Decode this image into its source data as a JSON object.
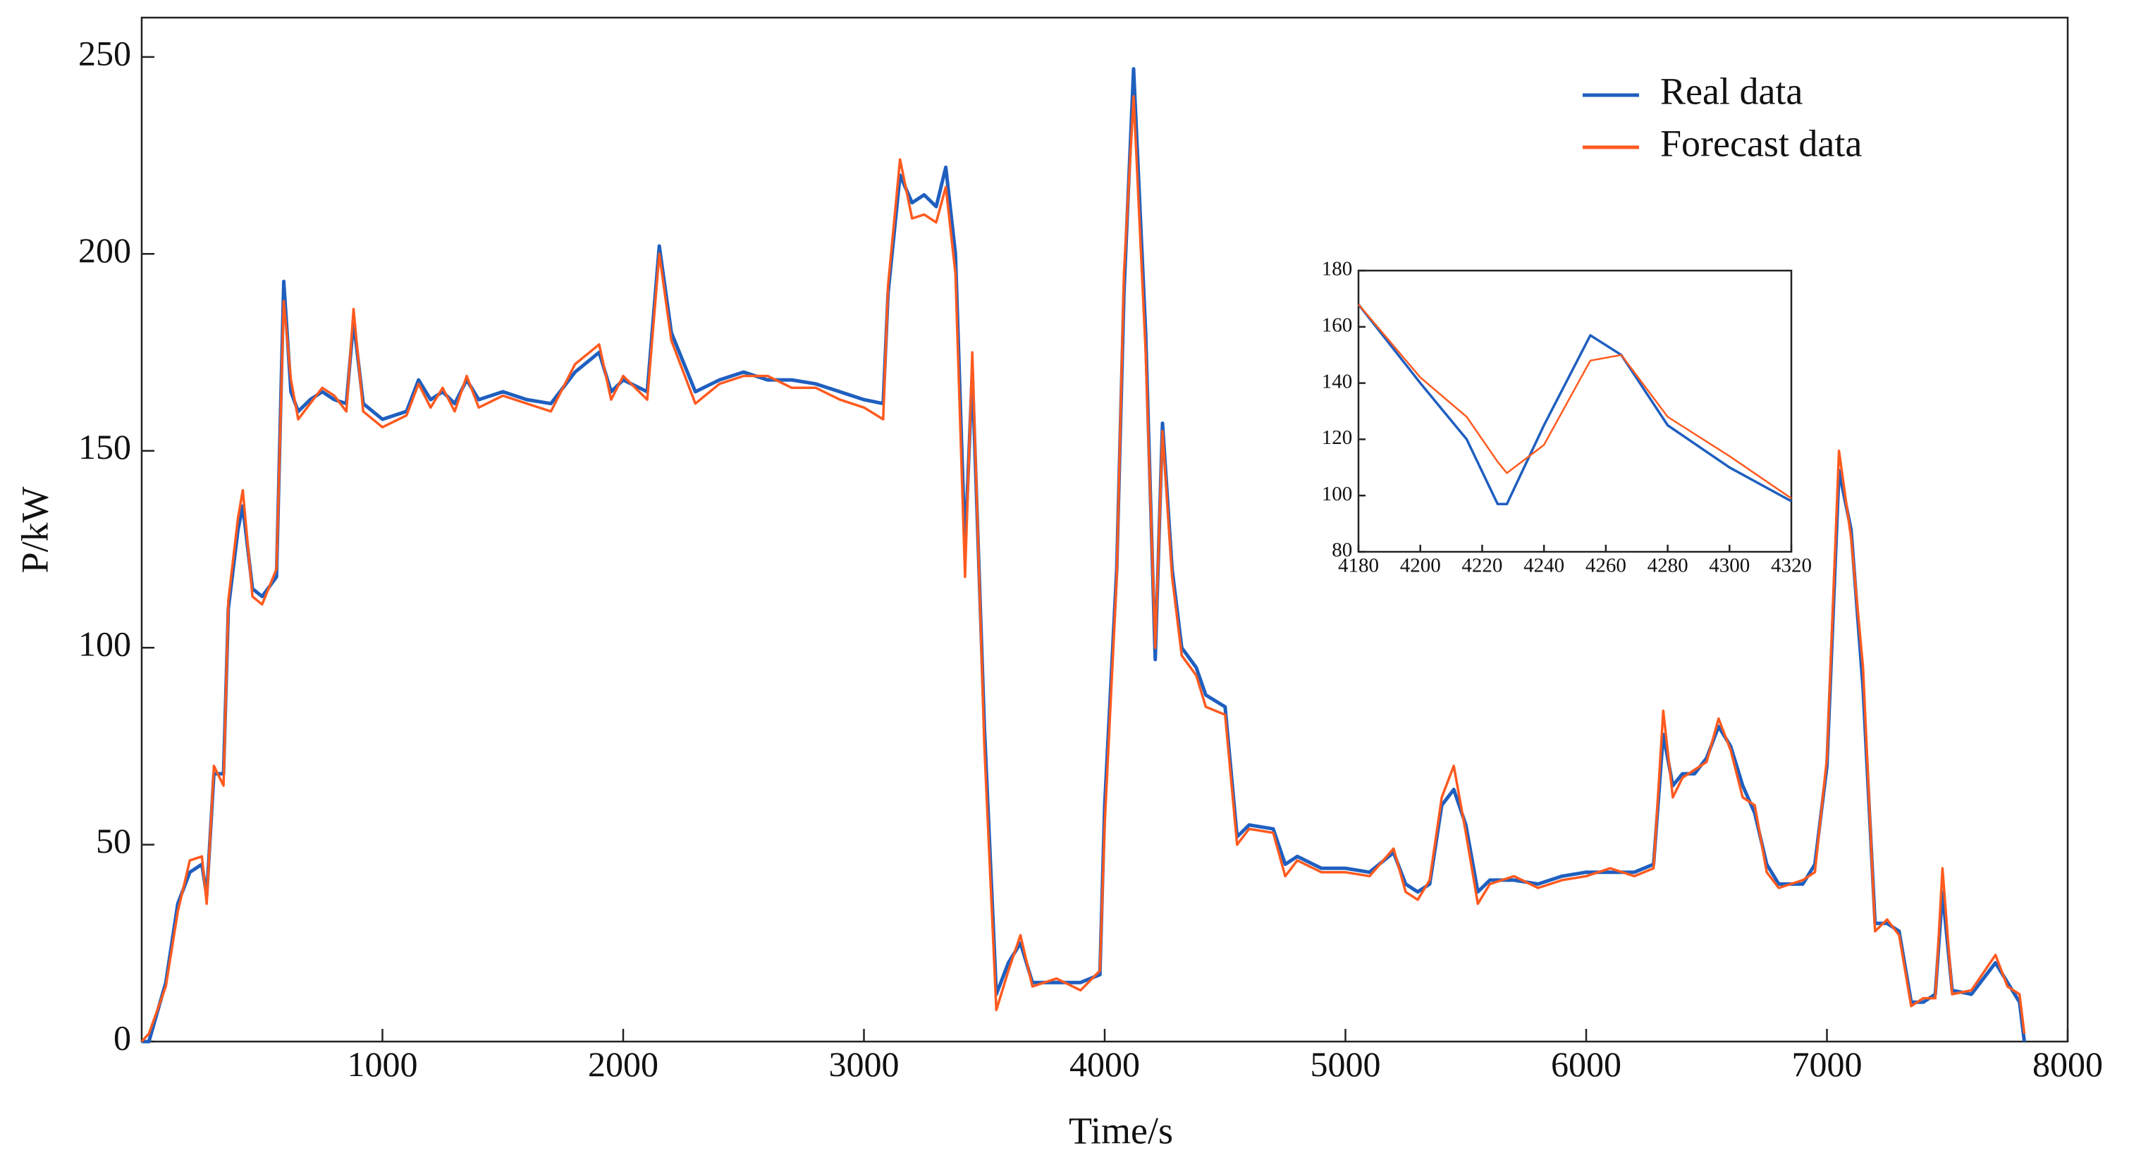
{
  "chart_data": [
    {
      "type": "line",
      "x_label": "Time/s",
      "y_label": "P/kW",
      "xlim": [
        0,
        8000
      ],
      "ylim": [
        0,
        260
      ],
      "xticks": [
        1000,
        2000,
        3000,
        4000,
        5000,
        6000,
        7000,
        8000
      ],
      "yticks": [
        0,
        50,
        100,
        150,
        200,
        250
      ],
      "legend": "upper right",
      "x": [
        0,
        30,
        100,
        150,
        200,
        250,
        270,
        300,
        340,
        360,
        400,
        420,
        460,
        500,
        560,
        590,
        620,
        650,
        700,
        750,
        800,
        850,
        880,
        920,
        1000,
        1100,
        1150,
        1200,
        1250,
        1300,
        1350,
        1400,
        1500,
        1600,
        1700,
        1800,
        1900,
        1950,
        2000,
        2100,
        2150,
        2200,
        2300,
        2400,
        2500,
        2600,
        2700,
        2800,
        2900,
        3000,
        3080,
        3100,
        3150,
        3200,
        3250,
        3300,
        3340,
        3380,
        3420,
        3450,
        3500,
        3550,
        3600,
        3650,
        3700,
        3800,
        3900,
        3980,
        4000,
        4050,
        4080,
        4120,
        4170,
        4210,
        4240,
        4280,
        4320,
        4380,
        4420,
        4500,
        4550,
        4600,
        4700,
        4750,
        4800,
        4900,
        5000,
        5100,
        5200,
        5250,
        5300,
        5350,
        5400,
        5450,
        5500,
        5550,
        5600,
        5700,
        5800,
        5900,
        6000,
        6100,
        6200,
        6280,
        6320,
        6360,
        6400,
        6450,
        6500,
        6550,
        6600,
        6650,
        6700,
        6750,
        6800,
        6900,
        6950,
        7000,
        7050,
        7100,
        7150,
        7200,
        7250,
        7300,
        7350,
        7400,
        7450,
        7480,
        7520,
        7600,
        7700,
        7750,
        7800,
        7820
      ],
      "series": [
        {
          "name": "Real data",
          "color": "#1f5fbf",
          "values": [
            0,
            0,
            15,
            35,
            43,
            45,
            37,
            68,
            68,
            110,
            130,
            136,
            115,
            113,
            118,
            193,
            165,
            160,
            163,
            165,
            163,
            162,
            183,
            162,
            158,
            160,
            168,
            163,
            165,
            162,
            168,
            163,
            165,
            163,
            162,
            170,
            175,
            165,
            168,
            165,
            202,
            180,
            165,
            168,
            170,
            168,
            168,
            167,
            165,
            163,
            162,
            190,
            220,
            213,
            215,
            212,
            222,
            200,
            125,
            170,
            80,
            12,
            20,
            25,
            15,
            15,
            15,
            17,
            60,
            120,
            190,
            247,
            180,
            97,
            157,
            120,
            100,
            95,
            88,
            85,
            52,
            55,
            54,
            45,
            47,
            44,
            44,
            43,
            48,
            40,
            38,
            40,
            60,
            64,
            55,
            38,
            41,
            41,
            40,
            42,
            43,
            43,
            43,
            45,
            78,
            65,
            68,
            68,
            72,
            80,
            75,
            65,
            58,
            45,
            40,
            40,
            45,
            70,
            145,
            130,
            90,
            30,
            30,
            28,
            10,
            10,
            12,
            38,
            13,
            12,
            20,
            15,
            10,
            0
          ]
        },
        {
          "name": "Forecast data",
          "color": "#ff5a1f",
          "values": [
            0,
            2,
            14,
            33,
            46,
            47,
            35,
            70,
            65,
            112,
            133,
            140,
            113,
            111,
            120,
            188,
            168,
            158,
            162,
            166,
            164,
            160,
            186,
            160,
            156,
            159,
            167,
            161,
            166,
            160,
            169,
            161,
            164,
            162,
            160,
            172,
            177,
            163,
            169,
            163,
            200,
            178,
            162,
            167,
            169,
            169,
            166,
            166,
            163,
            161,
            158,
            192,
            224,
            209,
            210,
            208,
            217,
            195,
            118,
            175,
            75,
            8,
            18,
            27,
            14,
            16,
            13,
            18,
            55,
            118,
            195,
            240,
            175,
            100,
            155,
            118,
            98,
            93,
            85,
            83,
            50,
            54,
            53,
            42,
            46,
            43,
            43,
            42,
            49,
            38,
            36,
            41,
            62,
            70,
            53,
            35,
            40,
            42,
            39,
            41,
            42,
            44,
            42,
            44,
            84,
            62,
            67,
            69,
            71,
            82,
            74,
            62,
            60,
            43,
            39,
            41,
            43,
            72,
            150,
            128,
            95,
            28,
            31,
            27,
            9,
            11,
            11,
            44,
            12,
            13,
            22,
            14,
            12,
            2
          ]
        }
      ]
    },
    {
      "type": "line",
      "xlim": [
        4180,
        4320
      ],
      "ylim": [
        80,
        180
      ],
      "xticks": [
        4180,
        4200,
        4220,
        4240,
        4260,
        4280,
        4300,
        4320
      ],
      "yticks": [
        80,
        100,
        120,
        140,
        160,
        180
      ],
      "x": [
        4180,
        4200,
        4215,
        4225,
        4228,
        4240,
        4255,
        4265,
        4280,
        4300,
        4320
      ],
      "series": [
        {
          "color": "#1f5fbf",
          "values": [
            168,
            140,
            120,
            97,
            97,
            125,
            157,
            150,
            125,
            110,
            98
          ]
        },
        {
          "color": "#ff5a1f",
          "values": [
            168,
            142,
            128,
            112,
            108,
            118,
            148,
            150,
            128,
            114,
            99
          ]
        }
      ]
    }
  ]
}
